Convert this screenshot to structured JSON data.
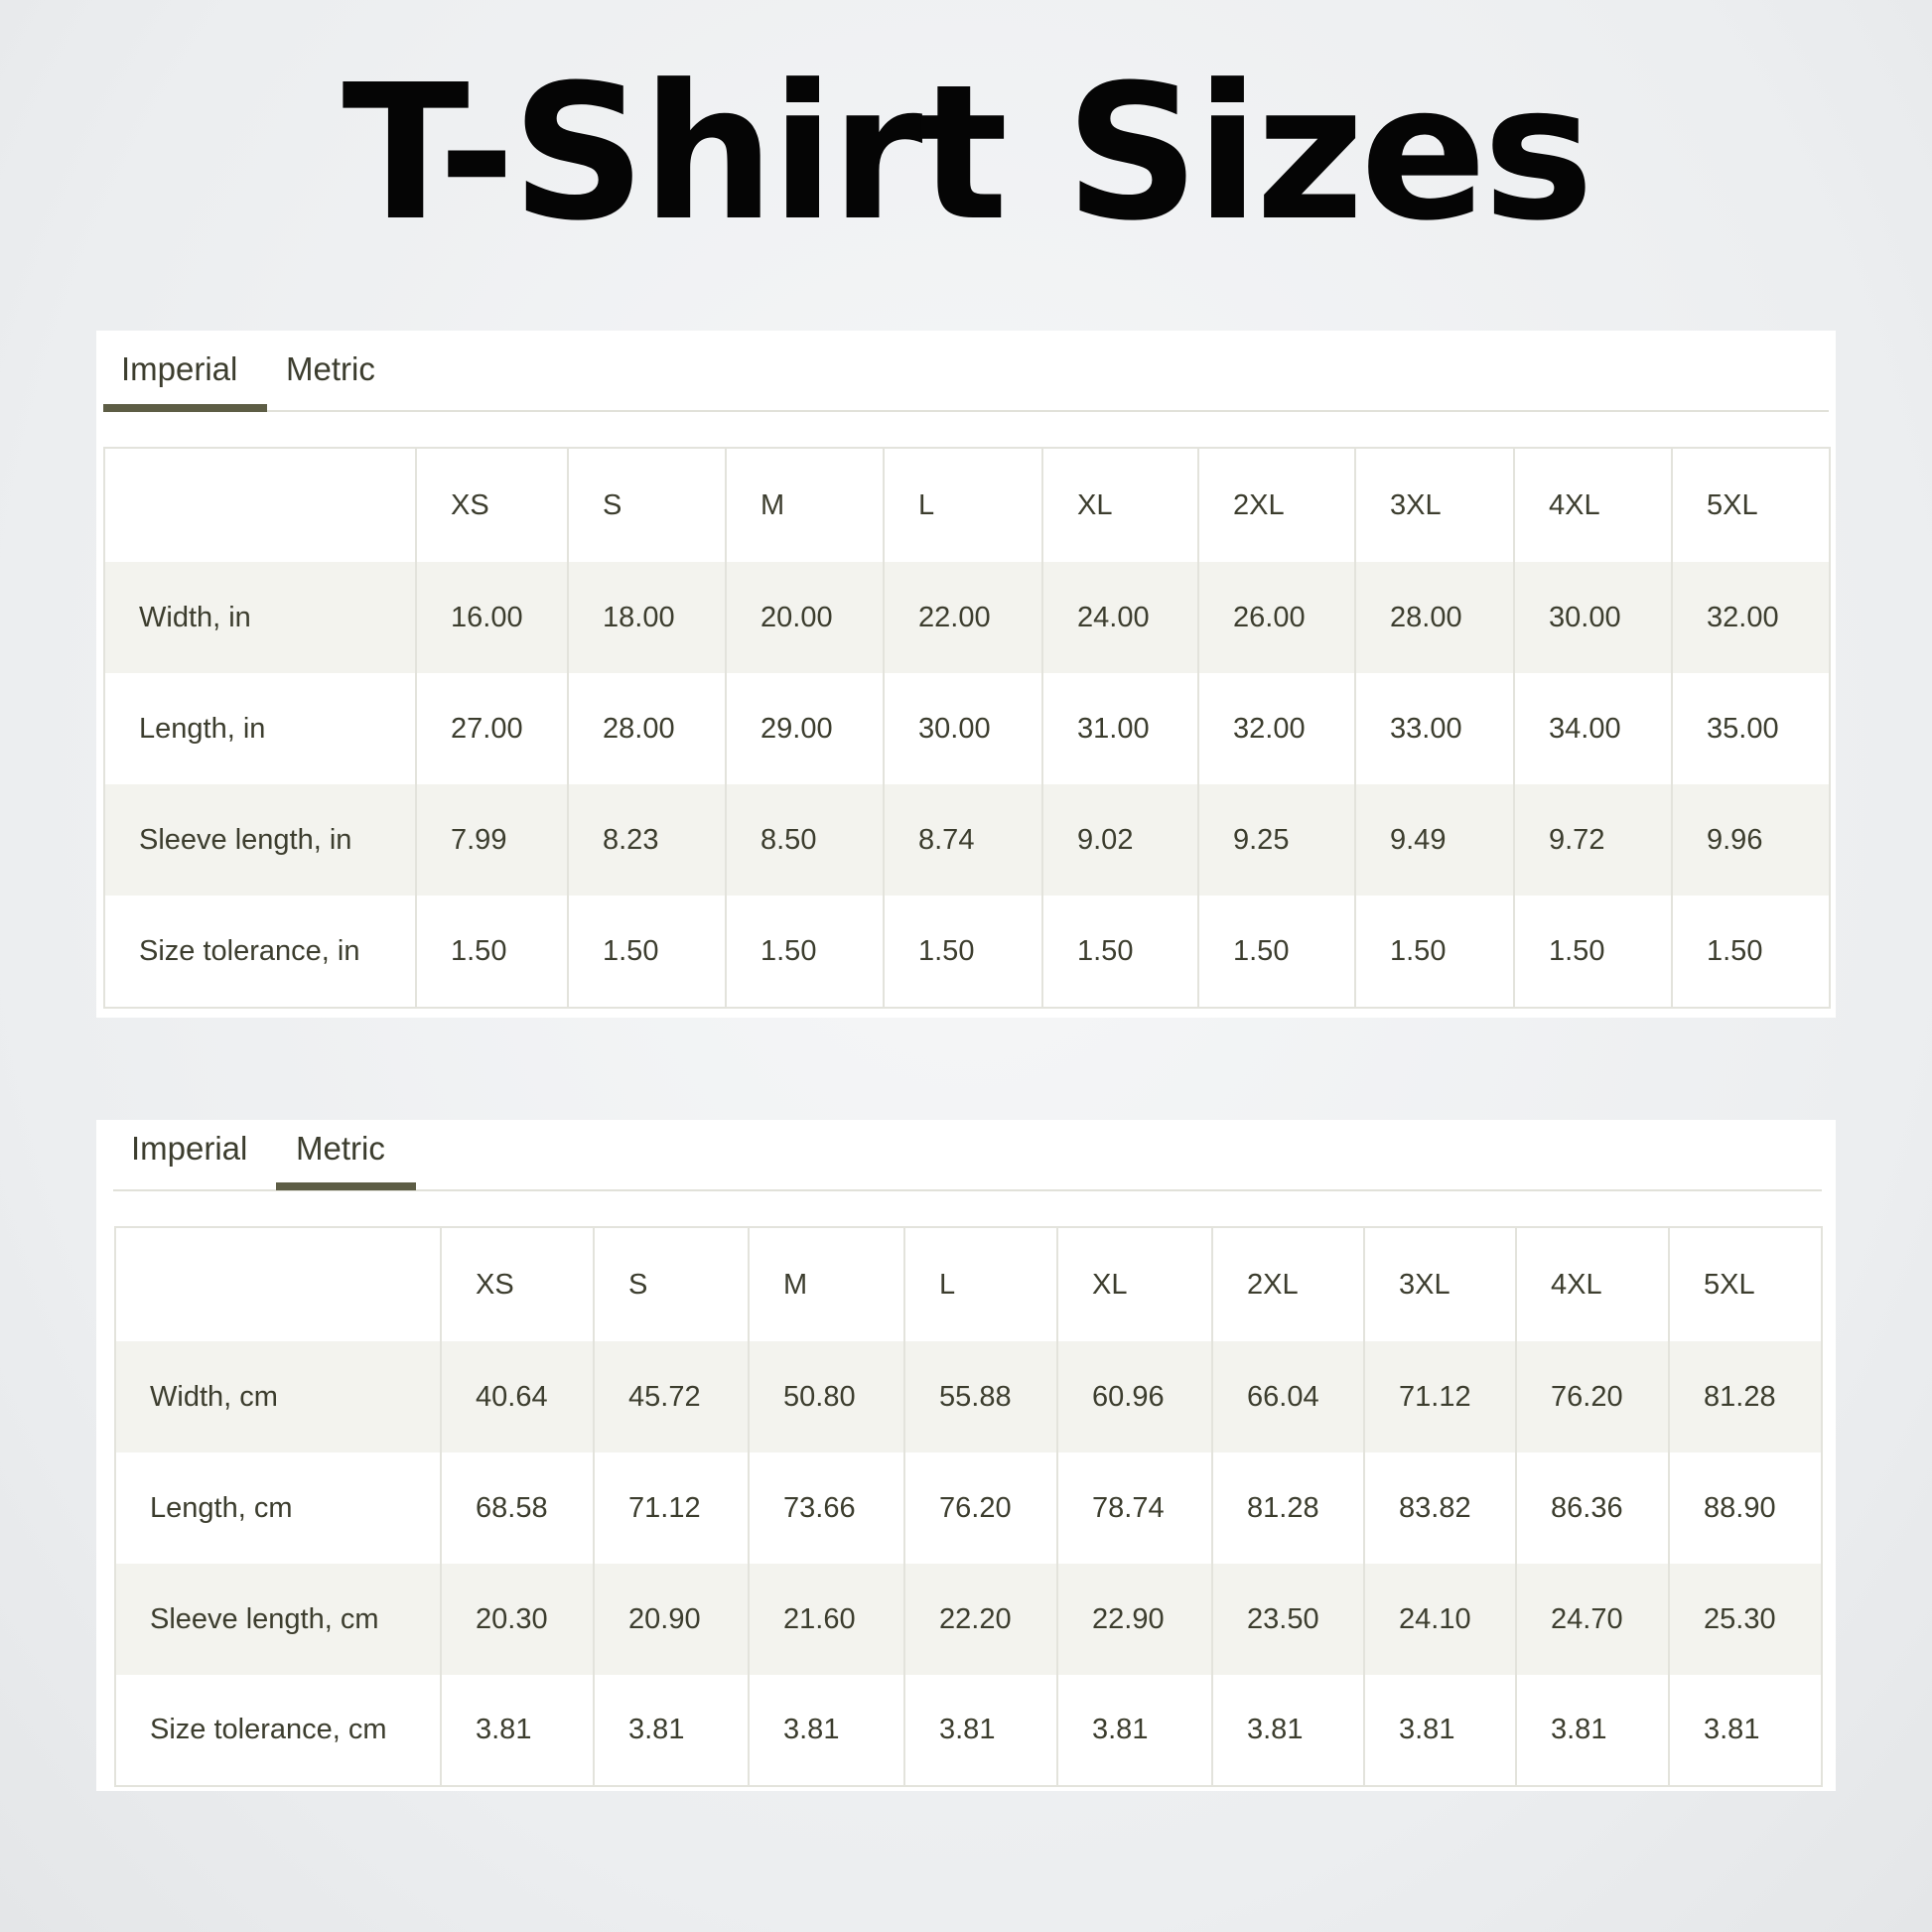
{
  "title": "T-Shirt Sizes",
  "accent_color": "#5d5d45",
  "stripe_color": "#f3f3ee",
  "panels": [
    {
      "tabs": [
        "Imperial",
        "Metric"
      ],
      "active_tab": "Imperial",
      "columns": [
        "",
        "XS",
        "S",
        "M",
        "L",
        "XL",
        "2XL",
        "3XL",
        "4XL",
        "5XL"
      ],
      "rows": [
        {
          "label": "Width, in",
          "values": [
            "16.00",
            "18.00",
            "20.00",
            "22.00",
            "24.00",
            "26.00",
            "28.00",
            "30.00",
            "32.00"
          ]
        },
        {
          "label": "Length, in",
          "values": [
            "27.00",
            "28.00",
            "29.00",
            "30.00",
            "31.00",
            "32.00",
            "33.00",
            "34.00",
            "35.00"
          ]
        },
        {
          "label": "Sleeve length, in",
          "values": [
            "7.99",
            "8.23",
            "8.50",
            "8.74",
            "9.02",
            "9.25",
            "9.49",
            "9.72",
            "9.96"
          ]
        },
        {
          "label": "Size tolerance, in",
          "values": [
            "1.50",
            "1.50",
            "1.50",
            "1.50",
            "1.50",
            "1.50",
            "1.50",
            "1.50",
            "1.50"
          ]
        }
      ]
    },
    {
      "tabs": [
        "Imperial",
        "Metric"
      ],
      "active_tab": "Metric",
      "columns": [
        "",
        "XS",
        "S",
        "M",
        "L",
        "XL",
        "2XL",
        "3XL",
        "4XL",
        "5XL"
      ],
      "rows": [
        {
          "label": "Width, cm",
          "values": [
            "40.64",
            "45.72",
            "50.80",
            "55.88",
            "60.96",
            "66.04",
            "71.12",
            "76.20",
            "81.28"
          ]
        },
        {
          "label": "Length, cm",
          "values": [
            "68.58",
            "71.12",
            "73.66",
            "76.20",
            "78.74",
            "81.28",
            "83.82",
            "86.36",
            "88.90"
          ]
        },
        {
          "label": "Sleeve length, cm",
          "values": [
            "20.30",
            "20.90",
            "21.60",
            "22.20",
            "22.90",
            "23.50",
            "24.10",
            "24.70",
            "25.30"
          ]
        },
        {
          "label": "Size tolerance, cm",
          "values": [
            "3.81",
            "3.81",
            "3.81",
            "3.81",
            "3.81",
            "3.81",
            "3.81",
            "3.81",
            "3.81"
          ]
        }
      ]
    }
  ]
}
